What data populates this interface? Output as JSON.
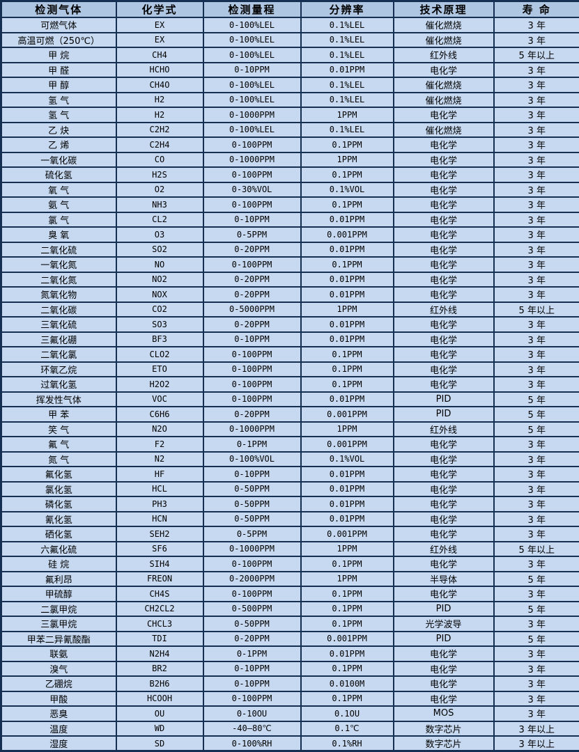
{
  "colors": {
    "header_bg": "#aec6e2",
    "row_bg": "#c6d9f1",
    "border": "#142f52",
    "text": "#000000"
  },
  "table": {
    "headers": [
      "检测气体",
      "化学式",
      "检测量程",
      "分辨率",
      "技术原理",
      "寿 命"
    ],
    "rows": [
      [
        "可燃气体",
        "EX",
        "0-100%LEL",
        "0.1%LEL",
        "催化燃烧",
        "3 年"
      ],
      [
        "高温可燃（250℃）",
        "EX",
        "0-100%LEL",
        "0.1%LEL",
        "催化燃烧",
        "3 年"
      ],
      [
        "甲 烷",
        "CH4",
        "0-100%LEL",
        "0.1%LEL",
        "红外线",
        "5 年以上"
      ],
      [
        "甲 醛",
        "HCHO",
        "0-10PPM",
        "0.01PPM",
        "电化学",
        "3 年"
      ],
      [
        "甲 醇",
        "CH4O",
        "0-100%LEL",
        "0.1%LEL",
        "催化燃烧",
        "3 年"
      ],
      [
        "氢 气",
        "H2",
        "0-100%LEL",
        "0.1%LEL",
        "催化燃烧",
        "3 年"
      ],
      [
        "氢 气",
        "H2",
        "0-1000PPM",
        "1PPM",
        "电化学",
        "3 年"
      ],
      [
        "乙 炔",
        "C2H2",
        "0-100%LEL",
        "0.1%LEL",
        "催化燃烧",
        "3 年"
      ],
      [
        "乙 烯",
        "C2H4",
        "0-100PPM",
        "0.1PPM",
        "电化学",
        "3 年"
      ],
      [
        "一氧化碳",
        "CO",
        "0-1000PPM",
        "1PPM",
        "电化学",
        "3 年"
      ],
      [
        "硫化氢",
        "H2S",
        "0-100PPM",
        "0.1PPM",
        "电化学",
        "3 年"
      ],
      [
        "氧 气",
        "O2",
        "0-30%VOL",
        "0.1%VOL",
        "电化学",
        "3 年"
      ],
      [
        "氨 气",
        "NH3",
        "0-100PPM",
        "0.1PPM",
        "电化学",
        "3 年"
      ],
      [
        "氯 气",
        "CL2",
        "0-10PPM",
        "0.01PPM",
        "电化学",
        "3 年"
      ],
      [
        "臭 氧",
        "O3",
        "0-5PPM",
        "0.001PPM",
        "电化学",
        "3 年"
      ],
      [
        "二氧化硫",
        "SO2",
        "0-20PPM",
        "0.01PPM",
        "电化学",
        "3 年"
      ],
      [
        "一氧化氮",
        "NO",
        "0-100PPM",
        "0.1PPM",
        "电化学",
        "3 年"
      ],
      [
        "二氧化氮",
        "NO2",
        "0-20PPM",
        "0.01PPM",
        "电化学",
        "3 年"
      ],
      [
        "氮氧化物",
        "NOX",
        "0-20PPM",
        "0.01PPM",
        "电化学",
        "3 年"
      ],
      [
        "二氧化碳",
        "CO2",
        "0-5000PPM",
        "1PPM",
        "红外线",
        "5 年以上"
      ],
      [
        "三氧化硫",
        "SO3",
        "0-20PPM",
        "0.01PPM",
        "电化学",
        "3 年"
      ],
      [
        "三氟化硼",
        "BF3",
        "0-10PPM",
        "0.01PPM",
        "电化学",
        "3 年"
      ],
      [
        "二氧化氯",
        "CLO2",
        "0-100PPM",
        "0.1PPM",
        "电化学",
        "3 年"
      ],
      [
        "环氧乙烷",
        "ETO",
        "0-100PPM",
        "0.1PPM",
        "电化学",
        "3 年"
      ],
      [
        "过氧化氢",
        "H2O2",
        "0-100PPM",
        "0.1PPM",
        "电化学",
        "3 年"
      ],
      [
        "挥发性气体",
        "VOC",
        "0-100PPM",
        "0.01PPM",
        "PID",
        "5 年"
      ],
      [
        "甲 苯",
        "C6H6",
        "0-20PPM",
        "0.001PPM",
        "PID",
        "5 年"
      ],
      [
        "笑 气",
        "N2O",
        "0-1000PPM",
        "1PPM",
        "红外线",
        "5 年"
      ],
      [
        "氟 气",
        "F2",
        "0-1PPM",
        "0.001PPM",
        "电化学",
        "3 年"
      ],
      [
        "氮 气",
        "N2",
        "0-100%VOL",
        "0.1%VOL",
        "电化学",
        "3 年"
      ],
      [
        "氟化氢",
        "HF",
        "0-10PPM",
        "0.01PPM",
        "电化学",
        "3 年"
      ],
      [
        "氯化氢",
        "HCL",
        "0-50PPM",
        "0.01PPM",
        "电化学",
        "3 年"
      ],
      [
        "磷化氢",
        "PH3",
        "0-50PPM",
        "0.01PPM",
        "电化学",
        "3 年"
      ],
      [
        "氰化氢",
        "HCN",
        "0-50PPM",
        "0.01PPM",
        "电化学",
        "3 年"
      ],
      [
        "硒化氢",
        "SEH2",
        "0-5PPM",
        "0.001PPM",
        "电化学",
        "3 年"
      ],
      [
        "六氟化硫",
        "SF6",
        "0-1000PPM",
        "1PPM",
        "红外线",
        "5 年以上"
      ],
      [
        "硅 烷",
        "SIH4",
        "0-100PPM",
        "0.1PPM",
        "电化学",
        "3 年"
      ],
      [
        "氟利昂",
        "FREON",
        "0-2000PPM",
        "1PPM",
        "半导体",
        "5 年"
      ],
      [
        "甲硫醇",
        "CH4S",
        "0-100PPM",
        "0.1PPM",
        "电化学",
        "3 年"
      ],
      [
        "二氯甲烷",
        "CH2CL2",
        "0-500PPM",
        "0.1PPM",
        "PID",
        "5 年"
      ],
      [
        "三氯甲烷",
        "CHCL3",
        "0-50PPM",
        "0.1PPM",
        "光学波导",
        "3 年"
      ],
      [
        "甲苯二异氰酸酯",
        "TDI",
        "0-20PPM",
        "0.001PPM",
        "PID",
        "5 年"
      ],
      [
        "联氨",
        "N2H4",
        "0-1PPM",
        "0.01PPM",
        "电化学",
        "3 年"
      ],
      [
        "溴气",
        "BR2",
        "0-10PPM",
        "0.1PPM",
        "电化学",
        "3 年"
      ],
      [
        "乙硼烷",
        "B2H6",
        "0-10PPM",
        "0.0100M",
        "电化学",
        "3 年"
      ],
      [
        "甲酸",
        "HCOOH",
        "0-100PPM",
        "0.1PPM",
        "电化学",
        "3 年"
      ],
      [
        "恶臭",
        "OU",
        "0-10OU",
        "0.1OU",
        "MOS",
        "3 年"
      ],
      [
        "温度",
        "WD",
        "-40—80℃",
        "0.1℃",
        "数字芯片",
        "3 年以上"
      ],
      [
        "湿度",
        "SD",
        "0-100%RH",
        "0.1%RH",
        "数字芯片",
        "3 年以上"
      ]
    ]
  }
}
